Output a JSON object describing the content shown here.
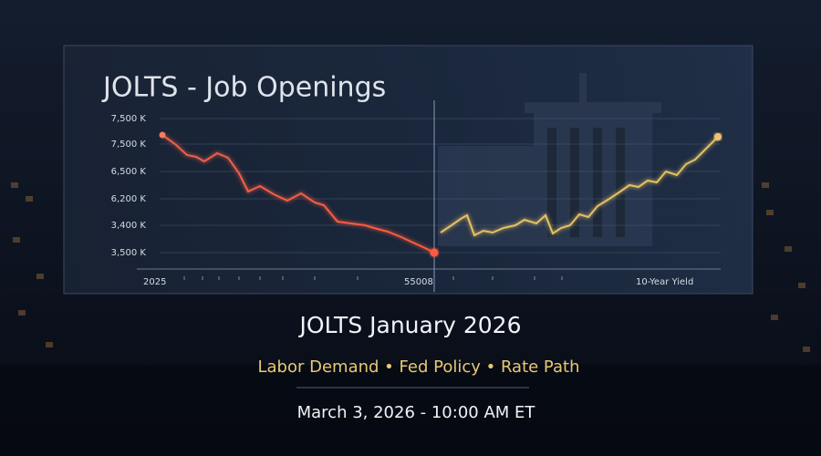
{
  "header": {
    "title": "JOLTS - Job Openings"
  },
  "chart": {
    "y_labels": [
      "7,500 K",
      "7,500 K",
      "6,500 K",
      "6,200 K",
      "3,400 K",
      "3,500 K"
    ],
    "x_labels": [
      "2025",
      "55008",
      "10-Year Yield"
    ]
  },
  "footer": {
    "headline": "JOLTS January 2026",
    "topics": "Labor Demand • Fed Policy • Rate Path",
    "date": "March 3, 2026 - 10:00 AM ET"
  }
}
